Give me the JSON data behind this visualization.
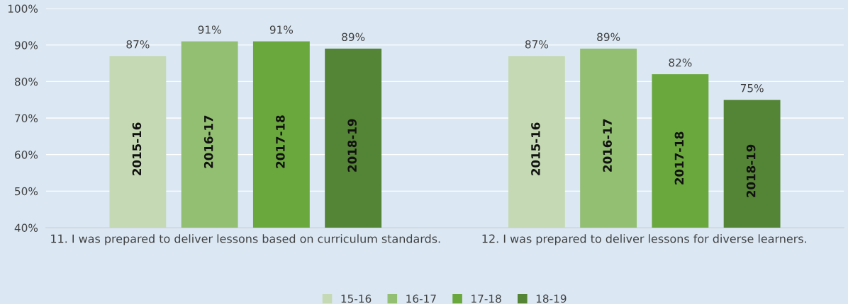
{
  "chart_data": {
    "type": "bar",
    "categories": [
      "11. I was prepared to deliver lessons based on curriculum standards.",
      "12. I was prepared to deliver lessons for diverse learners."
    ],
    "series": [
      {
        "name": "15-16",
        "color": "#c5dab4",
        "values": [
          87,
          87
        ],
        "value_labels": [
          "87%",
          "87%"
        ]
      },
      {
        "name": "16-17",
        "color": "#93bf72",
        "values": [
          91,
          89
        ],
        "value_labels": [
          "91%",
          "89%"
        ]
      },
      {
        "name": "17-18",
        "color": "#6aa83e",
        "values": [
          91,
          82
        ],
        "value_labels": [
          "91%",
          "82%"
        ]
      },
      {
        "name": "18-19",
        "color": "#548435",
        "values": [
          89,
          75
        ],
        "value_labels": [
          "89%",
          "75%"
        ]
      }
    ],
    "annotations": [
      "2015-16",
      "2016-17",
      "2017-18",
      "2018-19",
      "2015-16",
      "2016-17",
      "2017-18",
      "2018-19"
    ],
    "ylim": [
      40,
      100
    ],
    "yticks": [
      {
        "value": 40,
        "label": "40%"
      },
      {
        "value": 50,
        "label": "50%"
      },
      {
        "value": 60,
        "label": "60%"
      },
      {
        "value": 70,
        "label": "70%"
      },
      {
        "value": 80,
        "label": "80%"
      },
      {
        "value": 90,
        "label": "90%"
      },
      {
        "value": 100,
        "label": "100%"
      }
    ],
    "grid": "y",
    "legend": "bottom"
  }
}
